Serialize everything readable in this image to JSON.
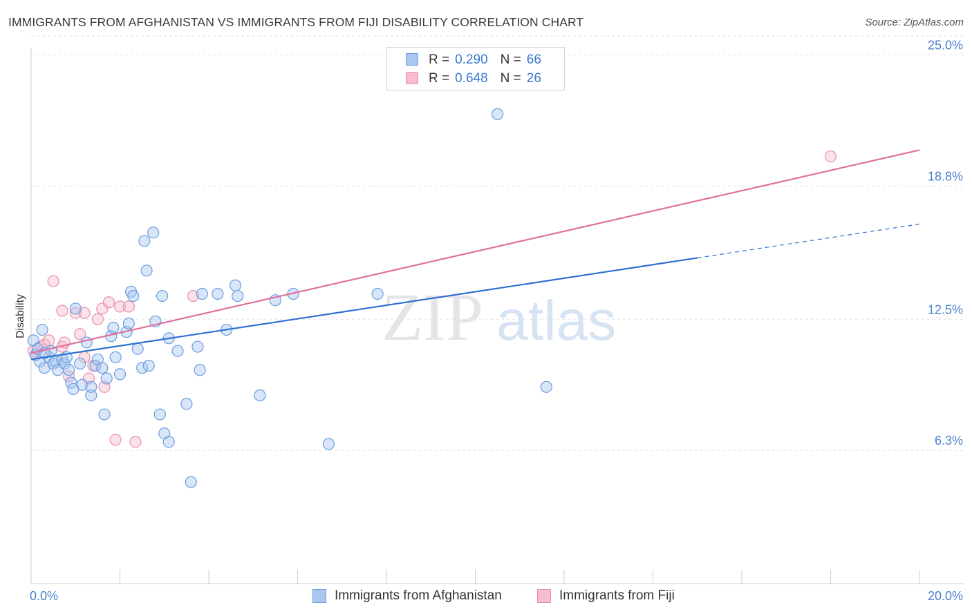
{
  "header": {
    "title": "IMMIGRANTS FROM AFGHANISTAN VS IMMIGRANTS FROM FIJI DISABILITY CORRELATION CHART",
    "source": "Source: ZipAtlas.com"
  },
  "watermark": {
    "zip": "ZIP",
    "atlas": "atlas"
  },
  "legend_top": {
    "rows": [
      {
        "r_label": "R =",
        "r_value": "0.290",
        "n_label": "N =",
        "n_value": "66"
      },
      {
        "r_label": "R =",
        "r_value": "0.648",
        "n_label": "N =",
        "n_value": "26"
      }
    ]
  },
  "colors": {
    "afghanistan_fill": "#a8c8f0",
    "afghanistan_stroke": "#6a9de0",
    "afghanistan_line": "#2c6fd1",
    "fiji_fill": "#f7bccd",
    "fiji_stroke": "#ea8fab",
    "fiji_line": "#e0709a",
    "tick_text": "#4a7fd0",
    "grid": "#dde1e7"
  },
  "chart_data": {
    "type": "scatter",
    "title": "IMMIGRANTS FROM AFGHANISTAN VS IMMIGRANTS FROM FIJI DISABILITY CORRELATION CHART",
    "xlabel": "",
    "ylabel": "Disability",
    "xlim": [
      0,
      20
    ],
    "ylim": [
      0,
      26
    ],
    "x_tick_labels": [
      "0.0%",
      "20.0%"
    ],
    "y_ticks": [
      6.3,
      12.5,
      18.8,
      25.0
    ],
    "y_tick_labels": [
      "6.3%",
      "12.5%",
      "18.8%",
      "25.0%"
    ],
    "grid": true,
    "legend_position": "bottom",
    "series": [
      {
        "name": "Immigrants from Afghanistan",
        "r": 0.29,
        "n": 66,
        "trend": {
          "x0": 0.0,
          "y0": 10.6,
          "x1": 15.0,
          "y1": 15.4,
          "dashed_to_x": 20.0,
          "dashed_to_y": 17.0
        },
        "points": [
          [
            0.05,
            11.5
          ],
          [
            0.1,
            10.8
          ],
          [
            0.15,
            11.1
          ],
          [
            0.2,
            10.5
          ],
          [
            0.25,
            12.0
          ],
          [
            0.3,
            10.2
          ],
          [
            0.4,
            10.7
          ],
          [
            0.45,
            11.0
          ],
          [
            0.5,
            10.4
          ],
          [
            0.55,
            10.5
          ],
          [
            0.6,
            10.1
          ],
          [
            0.7,
            10.6
          ],
          [
            0.75,
            10.4
          ],
          [
            0.8,
            10.7
          ],
          [
            0.85,
            10.1
          ],
          [
            0.9,
            9.5
          ],
          [
            0.95,
            9.2
          ],
          [
            1.0,
            13.0
          ],
          [
            1.1,
            10.4
          ],
          [
            1.15,
            9.4
          ],
          [
            1.25,
            11.4
          ],
          [
            1.35,
            8.9
          ],
          [
            1.35,
            9.3
          ],
          [
            1.45,
            10.3
          ],
          [
            1.5,
            10.6
          ],
          [
            1.6,
            10.2
          ],
          [
            1.65,
            8.0
          ],
          [
            1.7,
            9.7
          ],
          [
            1.8,
            11.7
          ],
          [
            1.85,
            12.1
          ],
          [
            1.9,
            10.7
          ],
          [
            2.0,
            9.9
          ],
          [
            2.15,
            11.9
          ],
          [
            2.2,
            12.3
          ],
          [
            2.25,
            13.8
          ],
          [
            2.3,
            13.6
          ],
          [
            2.4,
            11.1
          ],
          [
            2.5,
            10.2
          ],
          [
            2.55,
            16.2
          ],
          [
            2.6,
            14.8
          ],
          [
            2.65,
            10.3
          ],
          [
            2.75,
            16.6
          ],
          [
            2.8,
            12.4
          ],
          [
            2.9,
            8.0
          ],
          [
            2.95,
            13.6
          ],
          [
            3.0,
            7.1
          ],
          [
            3.1,
            6.7
          ],
          [
            3.1,
            11.6
          ],
          [
            3.3,
            11.0
          ],
          [
            3.5,
            8.5
          ],
          [
            3.6,
            4.8
          ],
          [
            3.75,
            11.2
          ],
          [
            3.8,
            10.1
          ],
          [
            3.85,
            13.7
          ],
          [
            4.2,
            13.7
          ],
          [
            4.4,
            12.0
          ],
          [
            4.6,
            14.1
          ],
          [
            4.65,
            13.6
          ],
          [
            5.15,
            8.9
          ],
          [
            5.5,
            13.4
          ],
          [
            5.9,
            13.7
          ],
          [
            6.7,
            6.6
          ],
          [
            7.8,
            13.7
          ],
          [
            10.5,
            22.2
          ],
          [
            11.6,
            9.3
          ],
          [
            0.3,
            10.9
          ]
        ]
      },
      {
        "name": "Immigrants from Fiji",
        "r": 0.648,
        "n": 26,
        "trend": {
          "x0": 0.0,
          "y0": 10.9,
          "x1": 20.0,
          "y1": 20.5
        },
        "points": [
          [
            0.05,
            11.0
          ],
          [
            0.1,
            10.8
          ],
          [
            0.2,
            11.2
          ],
          [
            0.3,
            11.3
          ],
          [
            0.4,
            11.5
          ],
          [
            0.5,
            14.3
          ],
          [
            0.7,
            11.2
          ],
          [
            0.7,
            12.9
          ],
          [
            0.75,
            11.4
          ],
          [
            0.85,
            9.8
          ],
          [
            1.0,
            12.8
          ],
          [
            1.2,
            12.8
          ],
          [
            1.1,
            11.8
          ],
          [
            1.2,
            10.7
          ],
          [
            1.3,
            9.7
          ],
          [
            1.4,
            10.3
          ],
          [
            1.5,
            12.5
          ],
          [
            1.6,
            13.0
          ],
          [
            1.65,
            9.3
          ],
          [
            1.75,
            13.3
          ],
          [
            1.9,
            6.8
          ],
          [
            2.0,
            13.1
          ],
          [
            2.2,
            13.1
          ],
          [
            2.35,
            6.7
          ],
          [
            3.65,
            13.6
          ],
          [
            18.0,
            20.2
          ]
        ]
      }
    ]
  },
  "bottom_legend": {
    "items": [
      "Immigrants from Afghanistan",
      "Immigrants from Fiji"
    ]
  }
}
